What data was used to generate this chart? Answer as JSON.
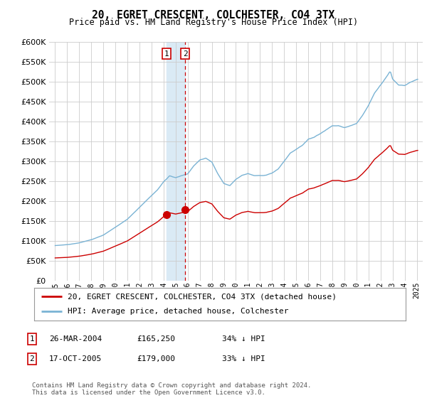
{
  "title": "20, EGRET CRESCENT, COLCHESTER, CO4 3TX",
  "subtitle": "Price paid vs. HM Land Registry's House Price Index (HPI)",
  "hpi_color": "#7ab3d4",
  "sale_color": "#cc0000",
  "sale_dates": [
    2004.23,
    2005.79
  ],
  "sale_prices": [
    165250,
    179000
  ],
  "sale_labels": [
    "1",
    "2"
  ],
  "sale_info": [
    {
      "label": "1",
      "date": "26-MAR-2004",
      "price": "£165,250",
      "pct": "34% ↓ HPI"
    },
    {
      "label": "2",
      "date": "17-OCT-2005",
      "price": "£179,000",
      "pct": "33% ↓ HPI"
    }
  ],
  "legend_line1": "20, EGRET CRESCENT, COLCHESTER, CO4 3TX (detached house)",
  "legend_line2": "HPI: Average price, detached house, Colchester",
  "footer": "Contains HM Land Registry data © Crown copyright and database right 2024.\nThis data is licensed under the Open Government Licence v3.0.",
  "ylim": [
    0,
    600000
  ],
  "yticks": [
    0,
    50000,
    100000,
    150000,
    200000,
    250000,
    300000,
    350000,
    400000,
    450000,
    500000,
    550000,
    600000
  ],
  "xlim_start": 1995.0,
  "xlim_end": 2025.5,
  "background_color": "#ffffff",
  "grid_color": "#cccccc",
  "highlight_color": "#daeaf5",
  "dashed_color": "#cc0000"
}
